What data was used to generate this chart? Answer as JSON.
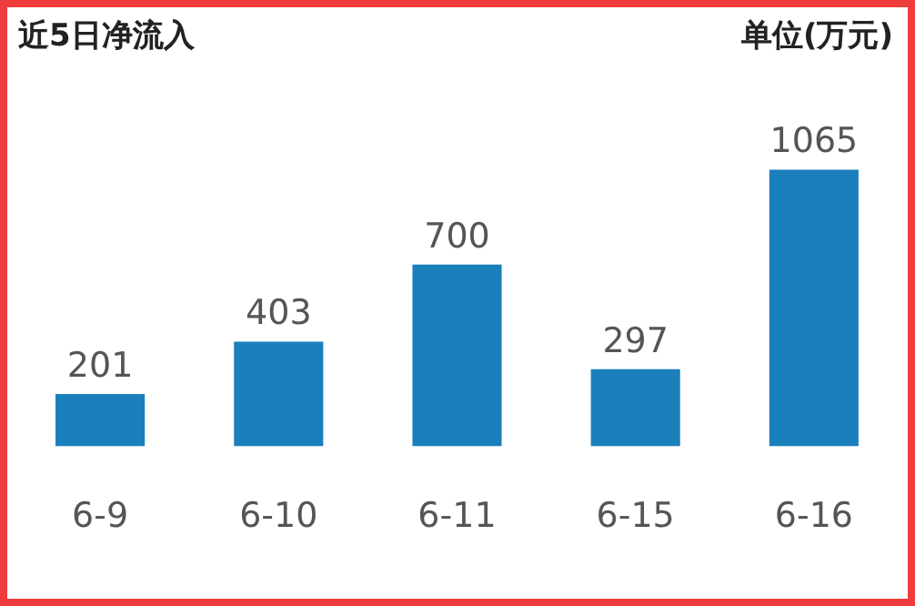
{
  "chart_data": {
    "type": "bar",
    "title": "近5日净流入",
    "ylabel": "单位(万元)",
    "categories": [
      "6-9",
      "6-10",
      "6-11",
      "6-15",
      "6-16"
    ],
    "values": [
      201,
      403,
      700,
      297,
      1065
    ],
    "color": "#1a7fbb",
    "data_labels": true,
    "grid": false,
    "legend": false
  }
}
